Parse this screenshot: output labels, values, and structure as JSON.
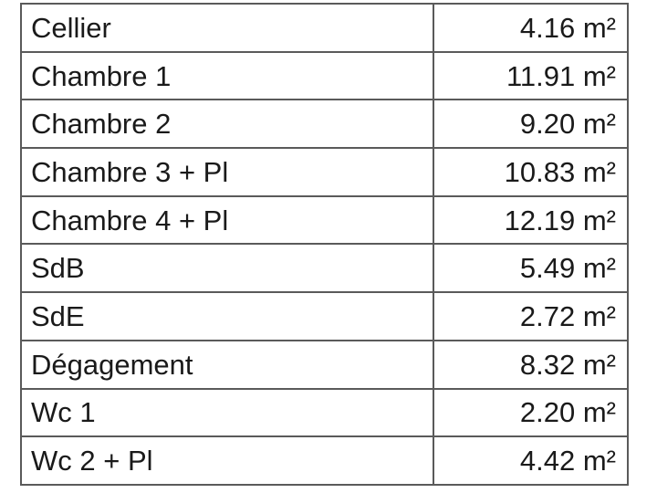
{
  "rooms": [
    {
      "name": "Cellier",
      "area": "4.16",
      "unit": "m²"
    },
    {
      "name": "Chambre 1",
      "area": "11.91",
      "unit": "m²"
    },
    {
      "name": "Chambre 2",
      "area": "9.20",
      "unit": "m²"
    },
    {
      "name": "Chambre 3 + Pl",
      "area": "10.83",
      "unit": "m²"
    },
    {
      "name": "Chambre 4 + Pl",
      "area": "12.19",
      "unit": "m²"
    },
    {
      "name": "SdB",
      "area": "5.49",
      "unit": "m²"
    },
    {
      "name": "SdE",
      "area": "2.72",
      "unit": "m²"
    },
    {
      "name": "Dégagement",
      "area": "8.32",
      "unit": "m²"
    },
    {
      "name": "Wc 1",
      "area": "2.20",
      "unit": "m²"
    },
    {
      "name": "Wc 2 + Pl",
      "area": "4.42",
      "unit": "m²"
    }
  ]
}
